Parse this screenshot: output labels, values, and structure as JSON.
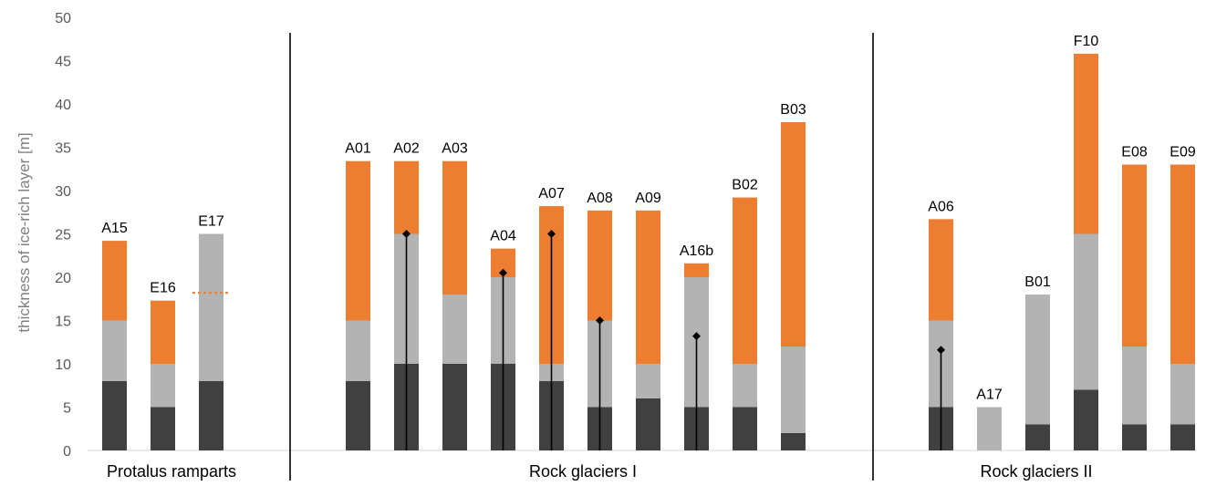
{
  "chart_data": {
    "type": "bar",
    "stacked": true,
    "ylabel": "thickness of ice-rich layer [m]",
    "ylim": [
      0,
      50
    ],
    "yticks": [
      0,
      5,
      10,
      15,
      20,
      25,
      30,
      35,
      40,
      45,
      50
    ],
    "grid": false,
    "colors": {
      "dark": "#404040",
      "light": "#b3b3b3",
      "orange": "#ed7d31",
      "marker": "#000000"
    },
    "groups": [
      {
        "label": "Protalus ramparts",
        "bars": [
          "A15",
          "E16",
          "E17"
        ]
      },
      {
        "label": "Rock glaciers I",
        "bars": [
          "A01",
          "A02",
          "A03",
          "A04",
          "A07",
          "A08",
          "A09",
          "A16b",
          "B02",
          "B03"
        ]
      },
      {
        "label": "Rock glaciers II",
        "bars": [
          "A06",
          "A17",
          "B01",
          "F10",
          "E08",
          "E09"
        ]
      }
    ],
    "bars": [
      {
        "label": "A15",
        "dark": 8,
        "light": 7,
        "orange": 9.2
      },
      {
        "label": "E16",
        "dark": 5,
        "light": 5,
        "orange": 7.3
      },
      {
        "label": "E17",
        "dark": 8,
        "light": 17,
        "orange": 0,
        "dashed_orange": 18.2
      },
      {
        "label": "A01",
        "dark": 8,
        "light": 7,
        "orange": 18.4
      },
      {
        "label": "A02",
        "dark": 10,
        "light": 15,
        "orange": 8.4,
        "marker": 25
      },
      {
        "label": "A03",
        "dark": 10,
        "light": 8,
        "orange": 15.4
      },
      {
        "label": "A04",
        "dark": 10,
        "light": 10,
        "orange": 3.3,
        "marker": 20.5
      },
      {
        "label": "A07",
        "dark": 8,
        "light": 2,
        "orange": 18.2,
        "marker": 25
      },
      {
        "label": "A08",
        "dark": 5,
        "light": 10,
        "orange": 12.7,
        "marker": 15
      },
      {
        "label": "A09",
        "dark": 6,
        "light": 4,
        "orange": 17.7
      },
      {
        "label": "A16b",
        "dark": 5,
        "light": 15,
        "orange": 1.6,
        "marker": 13.2
      },
      {
        "label": "B02",
        "dark": 5,
        "light": 5,
        "orange": 19.2
      },
      {
        "label": "B03",
        "dark": 2,
        "light": 10,
        "orange": 25.9
      },
      {
        "label": "A06",
        "dark": 5,
        "light": 10,
        "orange": 11.7,
        "marker": 11.6
      },
      {
        "label": "A17",
        "dark": 0,
        "light": 5,
        "orange": 0
      },
      {
        "label": "B01",
        "dark": 3,
        "light": 15,
        "orange": 0
      },
      {
        "label": "F10",
        "dark": 7,
        "light": 18,
        "orange": 20.8
      },
      {
        "label": "E08",
        "dark": 3,
        "light": 9,
        "orange": 21
      },
      {
        "label": "E09",
        "dark": 3,
        "light": 7,
        "orange": 23
      }
    ]
  }
}
